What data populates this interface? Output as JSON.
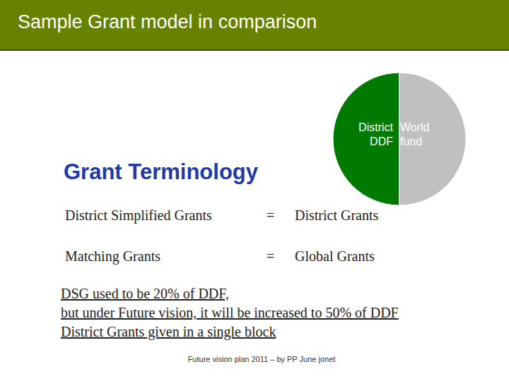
{
  "chart_data": {
    "type": "pie",
    "categories": [
      "District DDF",
      "World fund"
    ],
    "values": [
      50,
      50
    ],
    "colors": [
      "#007a00",
      "#c0c0c0"
    ]
  },
  "slide": {
    "title": "Sample Grant model in comparison",
    "heading": "Grant Terminology",
    "terms": [
      {
        "term": "District Simplified Grants",
        "equals": "=",
        "definition": "District Grants"
      },
      {
        "term": "Matching Grants",
        "equals": "=",
        "definition": "Global Grants"
      }
    ],
    "notes": [
      "DSG used to be 20% of DDF,",
      "but under Future vision, it will be increased to 50% of DDF",
      "District Grants given in a single block"
    ],
    "footer": "Future vision plan 2011 – by PP June jonet"
  }
}
